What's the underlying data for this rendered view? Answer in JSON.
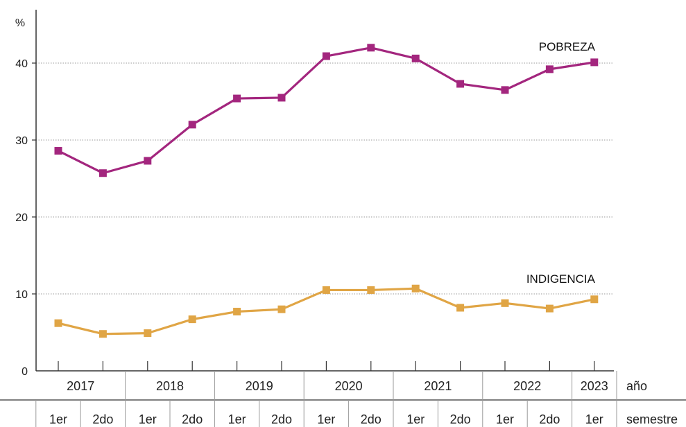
{
  "chart_data": {
    "type": "line",
    "ylabel": "%",
    "ylim": [
      0,
      45
    ],
    "yticks": [
      0,
      10,
      20,
      30,
      40
    ],
    "grid_y": true,
    "x_semesters": [
      "1er",
      "2do",
      "1er",
      "2do",
      "1er",
      "2do",
      "1er",
      "2do",
      "1er",
      "2do",
      "1er",
      "2do",
      "1er"
    ],
    "x_years": [
      {
        "label": "2017",
        "span": 2
      },
      {
        "label": "2018",
        "span": 2
      },
      {
        "label": "2019",
        "span": 2
      },
      {
        "label": "2020",
        "span": 2
      },
      {
        "label": "2021",
        "span": 2
      },
      {
        "label": "2022",
        "span": 2
      },
      {
        "label": "2023",
        "span": 1
      }
    ],
    "row_labels": {
      "year": "año",
      "semester": "semestre"
    },
    "series": [
      {
        "name": "POBREZA",
        "color": "#A3267E",
        "values": [
          28.6,
          25.7,
          27.3,
          32.0,
          35.4,
          35.5,
          40.9,
          42.0,
          40.6,
          37.3,
          36.5,
          39.2,
          40.1
        ]
      },
      {
        "name": "INDIGENCIA",
        "color": "#E0A545",
        "values": [
          6.2,
          4.8,
          4.9,
          6.7,
          7.7,
          8.0,
          10.5,
          10.5,
          10.7,
          8.2,
          8.8,
          8.1,
          9.3
        ]
      }
    ]
  }
}
